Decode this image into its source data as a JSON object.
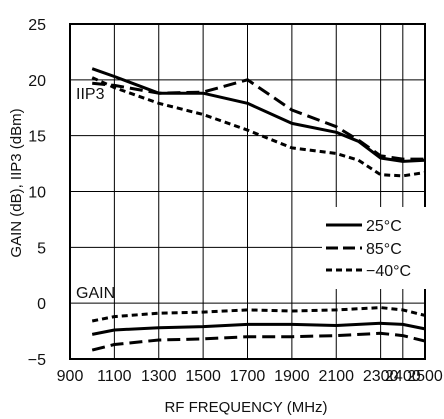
{
  "chart_data": {
    "type": "line",
    "xlabel": "RF FREQUENCY (MHz)",
    "ylabel": "GAIN (dB), IIP3 (dBm)",
    "xlim": [
      900,
      2500
    ],
    "ylim": [
      -5,
      25
    ],
    "x_ticks": [
      "900",
      "1100",
      "1300",
      "1500",
      "1700",
      "1900",
      "2100",
      "2300",
      "2400",
      "2500"
    ],
    "y_ticks": [
      "25",
      "20",
      "15",
      "10",
      "5",
      "0",
      "−5"
    ],
    "grid": true,
    "legend_position": "right",
    "annotations": {
      "iip3": "IIP3",
      "gain": "GAIN"
    },
    "legend": [
      {
        "label": "25°C",
        "style": "solid"
      },
      {
        "label": "85°C",
        "style": "long-dash"
      },
      {
        "label": "−40°C",
        "style": "short-dash"
      }
    ],
    "series": [
      {
        "name": "25°C",
        "group": "IIP3",
        "style": "solid",
        "x": [
          1000,
          1100,
          1300,
          1500,
          1700,
          1900,
          2100,
          2200,
          2300,
          2400,
          2500
        ],
        "values": [
          21.0,
          20.3,
          18.8,
          18.8,
          17.9,
          16.1,
          15.3,
          14.5,
          13.0,
          12.7,
          12.8
        ]
      },
      {
        "name": "85°C",
        "group": "IIP3",
        "style": "long-dash",
        "x": [
          1000,
          1100,
          1300,
          1500,
          1700,
          1900,
          2100,
          2200,
          2300,
          2400,
          2500
        ],
        "values": [
          19.7,
          19.5,
          18.8,
          18.9,
          20.0,
          17.3,
          15.8,
          14.6,
          13.2,
          12.9,
          12.9
        ]
      },
      {
        "name": "−40°C",
        "group": "IIP3",
        "style": "short-dash",
        "x": [
          1000,
          1100,
          1300,
          1500,
          1700,
          1900,
          2100,
          2200,
          2300,
          2400,
          2500
        ],
        "values": [
          20.2,
          19.3,
          17.9,
          16.9,
          15.5,
          13.9,
          13.4,
          12.8,
          11.5,
          11.4,
          11.7
        ]
      },
      {
        "name": "25°C",
        "group": "GAIN",
        "style": "solid",
        "x": [
          1000,
          1100,
          1300,
          1500,
          1700,
          1900,
          2100,
          2300,
          2400,
          2500
        ],
        "values": [
          -2.8,
          -2.4,
          -2.2,
          -2.1,
          -1.9,
          -1.9,
          -2.0,
          -1.8,
          -1.9,
          -2.3
        ]
      },
      {
        "name": "85°C",
        "group": "GAIN",
        "style": "long-dash",
        "x": [
          1000,
          1100,
          1300,
          1500,
          1700,
          1900,
          2100,
          2300,
          2400,
          2500
        ],
        "values": [
          -4.2,
          -3.7,
          -3.3,
          -3.2,
          -3.0,
          -3.0,
          -2.9,
          -2.7,
          -2.9,
          -3.4
        ]
      },
      {
        "name": "−40°C",
        "group": "GAIN",
        "style": "short-dash",
        "x": [
          1000,
          1100,
          1300,
          1500,
          1700,
          1900,
          2100,
          2300,
          2400,
          2500
        ],
        "values": [
          -1.6,
          -1.2,
          -0.9,
          -0.8,
          -0.6,
          -0.7,
          -0.6,
          -0.4,
          -0.6,
          -1.1
        ]
      }
    ]
  }
}
